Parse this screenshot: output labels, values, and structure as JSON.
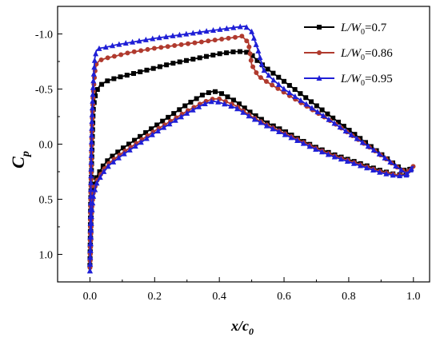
{
  "chart_data": {
    "type": "line",
    "xlabel": {
      "main": "x/c",
      "sub": "0"
    },
    "ylabel": {
      "main": "C",
      "sub": "p"
    },
    "xlim": [
      -0.1,
      1.05
    ],
    "ylim": [
      1.25,
      -1.25
    ],
    "y_inverted": true,
    "xticks": [
      0.0,
      0.2,
      0.4,
      0.6,
      0.8,
      1.0
    ],
    "xtick_labels": [
      "0.0",
      "0.2",
      "0.4",
      "0.6",
      "0.8",
      "1.0"
    ],
    "yticks": [
      -1.0,
      -0.5,
      0.0,
      0.5,
      1.0
    ],
    "ytick_labels": [
      "-1.0",
      "-0.5",
      "0.0",
      "0.5",
      "1.0"
    ],
    "legend_position": "top-right",
    "series": [
      {
        "name": "L/W0=0.7",
        "legend": {
          "pre": "L/W",
          "sub": "0",
          "post": "=0.7"
        },
        "color": "#000000",
        "marker": "square",
        "upper": [
          [
            0.0,
            1.1
          ],
          [
            0.002,
            0.55
          ],
          [
            0.005,
            0.2
          ],
          [
            0.01,
            -0.3
          ],
          [
            0.015,
            -0.42
          ],
          [
            0.02,
            -0.48
          ],
          [
            0.03,
            -0.53
          ],
          [
            0.05,
            -0.57
          ],
          [
            0.08,
            -0.6
          ],
          [
            0.12,
            -0.63
          ],
          [
            0.16,
            -0.66
          ],
          [
            0.2,
            -0.69
          ],
          [
            0.25,
            -0.73
          ],
          [
            0.3,
            -0.76
          ],
          [
            0.35,
            -0.79
          ],
          [
            0.4,
            -0.82
          ],
          [
            0.45,
            -0.84
          ],
          [
            0.48,
            -0.84
          ],
          [
            0.5,
            -0.81
          ],
          [
            0.52,
            -0.75
          ],
          [
            0.55,
            -0.68
          ],
          [
            0.6,
            -0.57
          ],
          [
            0.65,
            -0.46
          ],
          [
            0.7,
            -0.35
          ],
          [
            0.75,
            -0.24
          ],
          [
            0.8,
            -0.13
          ],
          [
            0.85,
            -0.02
          ],
          [
            0.9,
            0.09
          ],
          [
            0.95,
            0.2
          ],
          [
            0.98,
            0.25
          ],
          [
            1.0,
            0.2
          ]
        ],
        "lower": [
          [
            0.0,
            1.1
          ],
          [
            0.005,
            0.55
          ],
          [
            0.01,
            0.4
          ],
          [
            0.02,
            0.3
          ],
          [
            0.04,
            0.2
          ],
          [
            0.06,
            0.13
          ],
          [
            0.1,
            0.04
          ],
          [
            0.15,
            -0.06
          ],
          [
            0.2,
            -0.16
          ],
          [
            0.25,
            -0.26
          ],
          [
            0.3,
            -0.36
          ],
          [
            0.35,
            -0.45
          ],
          [
            0.38,
            -0.48
          ],
          [
            0.4,
            -0.47
          ],
          [
            0.45,
            -0.39
          ],
          [
            0.5,
            -0.28
          ],
          [
            0.55,
            -0.19
          ],
          [
            0.6,
            -0.12
          ],
          [
            0.65,
            -0.04
          ],
          [
            0.7,
            0.03
          ],
          [
            0.75,
            0.09
          ],
          [
            0.8,
            0.14
          ],
          [
            0.85,
            0.19
          ],
          [
            0.9,
            0.24
          ],
          [
            0.95,
            0.28
          ],
          [
            0.98,
            0.27
          ],
          [
            1.0,
            0.2
          ]
        ]
      },
      {
        "name": "L/W0=0.86",
        "legend": {
          "pre": "L/W",
          "sub": "0",
          "post": "=0.86"
        },
        "color": "#b03a2e",
        "marker": "circle",
        "upper": [
          [
            0.0,
            1.12
          ],
          [
            0.003,
            0.4
          ],
          [
            0.006,
            -0.1
          ],
          [
            0.01,
            -0.45
          ],
          [
            0.015,
            -0.65
          ],
          [
            0.02,
            -0.73
          ],
          [
            0.03,
            -0.76
          ],
          [
            0.05,
            -0.78
          ],
          [
            0.08,
            -0.8
          ],
          [
            0.12,
            -0.83
          ],
          [
            0.16,
            -0.85
          ],
          [
            0.2,
            -0.87
          ],
          [
            0.25,
            -0.89
          ],
          [
            0.3,
            -0.91
          ],
          [
            0.35,
            -0.93
          ],
          [
            0.4,
            -0.95
          ],
          [
            0.45,
            -0.97
          ],
          [
            0.47,
            -0.98
          ],
          [
            0.49,
            -0.92
          ],
          [
            0.5,
            -0.72
          ],
          [
            0.52,
            -0.62
          ],
          [
            0.55,
            -0.56
          ],
          [
            0.6,
            -0.47
          ],
          [
            0.65,
            -0.38
          ],
          [
            0.7,
            -0.29
          ],
          [
            0.75,
            -0.2
          ],
          [
            0.8,
            -0.1
          ],
          [
            0.85,
            0.0
          ],
          [
            0.9,
            0.1
          ],
          [
            0.95,
            0.21
          ],
          [
            0.98,
            0.26
          ],
          [
            1.0,
            0.2
          ]
        ],
        "lower": [
          [
            0.0,
            1.12
          ],
          [
            0.005,
            0.6
          ],
          [
            0.01,
            0.45
          ],
          [
            0.02,
            0.34
          ],
          [
            0.04,
            0.24
          ],
          [
            0.06,
            0.17
          ],
          [
            0.1,
            0.08
          ],
          [
            0.15,
            -0.02
          ],
          [
            0.2,
            -0.12
          ],
          [
            0.25,
            -0.21
          ],
          [
            0.3,
            -0.3
          ],
          [
            0.35,
            -0.38
          ],
          [
            0.38,
            -0.41
          ],
          [
            0.4,
            -0.41
          ],
          [
            0.45,
            -0.35
          ],
          [
            0.5,
            -0.25
          ],
          [
            0.55,
            -0.17
          ],
          [
            0.6,
            -0.1
          ],
          [
            0.65,
            -0.03
          ],
          [
            0.7,
            0.04
          ],
          [
            0.75,
            0.1
          ],
          [
            0.8,
            0.15
          ],
          [
            0.85,
            0.2
          ],
          [
            0.9,
            0.25
          ],
          [
            0.95,
            0.28
          ],
          [
            0.98,
            0.28
          ],
          [
            1.0,
            0.2
          ]
        ]
      },
      {
        "name": "L/W0=0.95",
        "legend": {
          "pre": "L/W",
          "sub": "0",
          "post": "=0.95"
        },
        "color": "#1f1fd6",
        "marker": "triangle",
        "upper": [
          [
            0.0,
            1.15
          ],
          [
            0.003,
            0.3
          ],
          [
            0.006,
            -0.2
          ],
          [
            0.01,
            -0.55
          ],
          [
            0.015,
            -0.78
          ],
          [
            0.02,
            -0.85
          ],
          [
            0.03,
            -0.87
          ],
          [
            0.05,
            -0.88
          ],
          [
            0.08,
            -0.9
          ],
          [
            0.12,
            -0.92
          ],
          [
            0.16,
            -0.94
          ],
          [
            0.2,
            -0.96
          ],
          [
            0.25,
            -0.98
          ],
          [
            0.3,
            -1.0
          ],
          [
            0.35,
            -1.02
          ],
          [
            0.4,
            -1.04
          ],
          [
            0.45,
            -1.06
          ],
          [
            0.48,
            -1.07
          ],
          [
            0.5,
            -1.02
          ],
          [
            0.52,
            -0.85
          ],
          [
            0.535,
            -0.68
          ],
          [
            0.56,
            -0.6
          ],
          [
            0.6,
            -0.5
          ],
          [
            0.65,
            -0.4
          ],
          [
            0.7,
            -0.3
          ],
          [
            0.75,
            -0.2
          ],
          [
            0.8,
            -0.1
          ],
          [
            0.85,
            0.0
          ],
          [
            0.9,
            0.1
          ],
          [
            0.95,
            0.21
          ],
          [
            0.98,
            0.27
          ],
          [
            1.0,
            0.2
          ]
        ],
        "lower": [
          [
            0.0,
            1.15
          ],
          [
            0.005,
            0.65
          ],
          [
            0.01,
            0.48
          ],
          [
            0.02,
            0.36
          ],
          [
            0.04,
            0.26
          ],
          [
            0.06,
            0.19
          ],
          [
            0.1,
            0.1
          ],
          [
            0.15,
            0.0
          ],
          [
            0.2,
            -0.1
          ],
          [
            0.25,
            -0.19
          ],
          [
            0.3,
            -0.28
          ],
          [
            0.35,
            -0.36
          ],
          [
            0.38,
            -0.39
          ],
          [
            0.4,
            -0.38
          ],
          [
            0.45,
            -0.33
          ],
          [
            0.5,
            -0.24
          ],
          [
            0.55,
            -0.16
          ],
          [
            0.6,
            -0.09
          ],
          [
            0.65,
            -0.02
          ],
          [
            0.7,
            0.05
          ],
          [
            0.75,
            0.11
          ],
          [
            0.8,
            0.16
          ],
          [
            0.85,
            0.21
          ],
          [
            0.9,
            0.26
          ],
          [
            0.95,
            0.29
          ],
          [
            0.98,
            0.28
          ],
          [
            1.0,
            0.2
          ]
        ]
      }
    ]
  }
}
